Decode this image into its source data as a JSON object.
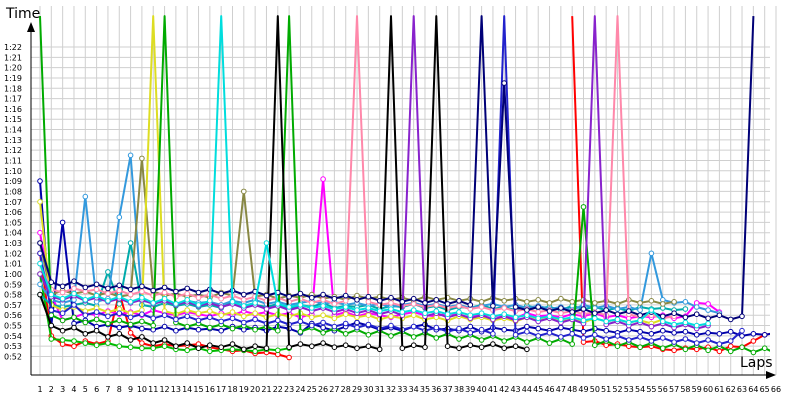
{
  "chart_data": {
    "type": "line",
    "ylabel": "Time",
    "xlabel": "Laps",
    "grid": true,
    "legend": "none",
    "xlim": [
      1,
      66
    ],
    "ylim": [
      51,
      82.5
    ],
    "y_ticks": [
      "0:52",
      "0:53",
      "0:54",
      "0:55",
      "0:56",
      "0:57",
      "0:58",
      "0:59",
      "1:00",
      "1:01",
      "1:02",
      "1:03",
      "1:04",
      "1:05",
      "1:06",
      "1:07",
      "1:08",
      "1:09",
      "1:10",
      "1:11",
      "1:12",
      "1:13",
      "1:14",
      "1:15",
      "1:16",
      "1:17",
      "1:18",
      "1:19",
      "1:20",
      "1:21",
      "1:22"
    ],
    "x_ticks": [
      "1",
      "2",
      "3",
      "4",
      "5",
      "6",
      "7",
      "8",
      "9",
      "10",
      "11",
      "12",
      "13",
      "14",
      "15",
      "16",
      "17",
      "18",
      "19",
      "20",
      "21",
      "22",
      "23",
      "24",
      "25",
      "26",
      "27",
      "28",
      "29",
      "30",
      "31",
      "32",
      "33",
      "34",
      "35",
      "36",
      "37",
      "38",
      "39",
      "40",
      "41",
      "42",
      "43",
      "44",
      "45",
      "46",
      "47",
      "48",
      "49",
      "50",
      "51",
      "52",
      "53",
      "54",
      "55",
      "56",
      "57",
      "58",
      "59",
      "60",
      "61",
      "62",
      "63",
      "64",
      "65",
      "66"
    ],
    "series": [
      {
        "color": "#ff0000",
        "values": [
          62,
          54,
          53.2,
          53.0,
          53.5,
          53.2,
          53.5,
          58.2,
          54.3,
          53.3,
          53.0,
          53.2,
          53.0,
          53.1,
          53.2,
          52.9,
          52.7,
          52.5,
          52.6,
          52.3,
          52.4,
          52.2,
          51.9,
          null,
          null,
          null,
          null,
          null,
          null,
          null,
          null,
          null,
          null,
          null,
          null,
          null,
          null,
          null,
          null,
          null,
          null,
          null,
          null,
          null,
          null,
          null,
          null,
          85,
          53.4,
          53.5,
          53.1,
          53.2,
          53.0,
          52.9,
          53.0,
          52.7,
          52.6,
          52.8,
          52.7,
          52.9,
          52.5,
          53.0,
          52.9,
          53.5,
          54.1,
          54.3
        ]
      },
      {
        "color": "#00bb00",
        "values": [
          60.0,
          53.7,
          53.6,
          53.5,
          53.3,
          53.1,
          53.3,
          53.0,
          52.9,
          52.8,
          52.8,
          53.0,
          52.7,
          52.6,
          52.8,
          52.5,
          52.6,
          52.7,
          52.6,
          52.5,
          52.7,
          52.6,
          52.8,
          null,
          null,
          null,
          null,
          null,
          null,
          null,
          null,
          null,
          null,
          null,
          null,
          null,
          null,
          null,
          null,
          null,
          null,
          null,
          null,
          null,
          null,
          null,
          null,
          null,
          null,
          null,
          null,
          null,
          null,
          null,
          null,
          null,
          null,
          null,
          null,
          null,
          null,
          null,
          null,
          null,
          null,
          null
        ]
      },
      {
        "color": "#0000aa",
        "values": [
          69,
          55,
          65.0,
          55.2,
          55.5,
          54.9,
          55.1,
          54.8,
          55.0,
          54.7,
          54.6,
          54.9,
          54.5,
          54.8,
          54.6,
          54.7,
          54.5,
          54.9,
          54.6,
          54.8,
          54.5,
          54.9,
          54.7,
          54.3,
          55.2,
          54.8,
          54.5,
          54.9,
          55.3,
          55.0,
          54.6,
          54.8,
          54.5,
          54.9,
          55.1,
          54.6,
          54.7,
          54.5,
          54.9,
          54.4,
          54.8,
          54.6,
          54.5,
          54.9,
          54.7,
          54.5,
          54.8,
          54.6,
          54.4,
          54.7,
          54.5,
          54.3,
          54.6,
          54.4,
          54.2,
          54.5,
          54.3,
          54.4,
          54.1,
          54.3,
          54.2,
          54.4,
          54.0,
          54.2,
          54.1,
          54.3
        ]
      },
      {
        "color": "#ff00ff",
        "values": [
          64,
          58,
          55.5,
          55.8,
          56.2,
          56.0,
          56.4,
          56.1,
          56.3,
          56.0,
          56.5,
          56.2,
          56.0,
          56.3,
          56.1,
          55.9,
          56.2,
          56.0,
          56.4,
          56.1,
          56.3,
          56.0,
          56.2,
          55.8,
          56.1,
          69.2,
          56.0,
          56.3,
          55.9,
          56.2,
          56.0,
          55.8,
          56.1,
          56.3,
          56.0,
          55.9,
          56.2,
          56.0,
          55.8,
          56.1,
          55.9,
          56.0,
          55.7,
          56.2,
          55.9,
          56.0,
          55.8,
          56.1,
          55.9,
          56.2,
          55.8,
          56.0,
          55.7,
          55.9,
          55.8,
          56.0,
          55.7,
          55.9,
          57.2,
          57.1,
          56.3,
          null,
          null,
          null,
          null,
          null
        ]
      },
      {
        "color": "#00aaaa",
        "values": [
          58,
          57,
          56.8,
          57.0,
          57.2,
          56.9,
          60.2,
          57.1,
          63.0,
          57.0,
          56.8,
          57.2,
          56.9,
          57.1,
          56.8,
          57.0,
          56.7,
          57.3,
          56.9,
          57.0,
          56.8,
          57.1,
          56.6,
          57.0,
          56.8,
          57.2,
          56.7,
          56.9,
          56.8,
          57.0,
          56.6,
          56.9,
          56.8,
          57.1,
          56.7,
          56.9,
          56.5,
          56.8,
          56.7,
          57.0,
          56.6,
          56.8,
          56.5,
          56.9,
          56.7,
          56.8,
          56.5,
          56.9,
          56.6,
          56.8,
          56.5,
          56.7,
          56.4,
          56.8,
          56.6,
          56.7,
          56.5,
          56.6,
          null,
          null,
          null,
          null,
          null,
          null,
          null,
          null
        ]
      },
      {
        "color": "#3399dd",
        "values": [
          59,
          57.5,
          57.2,
          57.5,
          67.5,
          57.3,
          57.6,
          65.5,
          71.5,
          57.4,
          57.2,
          57.5,
          57.1,
          57.4,
          57.2,
          57.3,
          57.0,
          57.4,
          57.2,
          57.5,
          57.1,
          57.3,
          57.0,
          57.2,
          57.4,
          57.1,
          57.3,
          57.0,
          57.2,
          56.9,
          57.1,
          56.8,
          57.0,
          57.2,
          56.9,
          57.1,
          56.8,
          57.0,
          56.7,
          56.9,
          57.1,
          56.8,
          57.0,
          56.7,
          56.9,
          56.6,
          56.8,
          56.5,
          57.0,
          56.7,
          56.9,
          56.6,
          56.8,
          56.5,
          62.0,
          57.5,
          57.2,
          57.3,
          56.8,
          56.5,
          56.2,
          null,
          null,
          null,
          null,
          null
        ]
      },
      {
        "color": "#888844",
        "values": [
          63,
          58,
          58.4,
          58.1,
          58.3,
          57.9,
          58.2,
          57.8,
          58.0,
          71.2,
          58.3,
          57.9,
          58.1,
          57.8,
          58.0,
          57.7,
          58.2,
          57.9,
          68.0,
          57.8,
          58.0,
          57.6,
          57.9,
          57.7,
          58.0,
          57.6,
          57.8,
          57.5,
          57.9,
          57.6,
          57.8,
          57.5,
          57.7,
          57.4,
          57.8,
          57.5,
          57.7,
          57.4,
          57.6,
          57.3,
          57.7,
          57.4,
          57.6,
          57.3,
          57.5,
          57.2,
          57.6,
          57.3,
          57.5,
          57.2,
          57.4,
          57.1,
          57.5,
          57.2,
          57.4,
          57.1,
          57.3,
          null,
          null,
          null,
          null,
          null,
          null,
          null,
          null,
          null
        ]
      },
      {
        "color": "#dddd22",
        "values": [
          67,
          57,
          56.5,
          56.8,
          56.4,
          56.7,
          56.3,
          56.6,
          56.2,
          56.5,
          85,
          56.4,
          56.1,
          56.5,
          56.2,
          56.4,
          56.0,
          56.3,
          55.9,
          56.2,
          55.8,
          56.1,
          55.9,
          56.2,
          55.8,
          56.0,
          55.7,
          56.1,
          55.8,
          56.0,
          55.6,
          55.9,
          55.7,
          56.0,
          55.6,
          55.8,
          55.5,
          55.9,
          55.6,
          55.8,
          55.5,
          55.7,
          55.4,
          55.8,
          55.5,
          55.7,
          55.4,
          55.6,
          55.3,
          55.7,
          55.4,
          55.6,
          55.3,
          55.5,
          55.2,
          55.6,
          null,
          null,
          null,
          null,
          null,
          null,
          null,
          null,
          null,
          null
        ]
      },
      {
        "color": "#ff88aa",
        "values": [
          61,
          58.5,
          58.2,
          58.6,
          58.3,
          58.5,
          58.1,
          58.4,
          58.0,
          58.3,
          57.9,
          58.2,
          57.8,
          58.1,
          57.7,
          58.0,
          57.6,
          57.9,
          57.5,
          57.8,
          57.4,
          57.7,
          57.3,
          57.6,
          57.2,
          57.5,
          57.1,
          57.4,
          85,
          57.3,
          57.0,
          57.2,
          56.9,
          57.1,
          56.8,
          57.0,
          56.7,
          56.9,
          56.6,
          56.8,
          56.5,
          56.7,
          56.4,
          56.6,
          56.3,
          56.5,
          56.2,
          56.4,
          56.1,
          56.3,
          56.0,
          85,
          56.1,
          55.8,
          56.0,
          55.7,
          55.9,
          null,
          null,
          null,
          null,
          null,
          null,
          null,
          null,
          null
        ]
      },
      {
        "color": "#00aa00",
        "values": [
          85,
          56,
          55.5,
          55.8,
          55.3,
          55.6,
          55.2,
          55.5,
          55.1,
          55.4,
          55.0,
          85,
          55.3,
          54.9,
          55.2,
          54.8,
          55.1,
          54.7,
          55.0,
          54.6,
          54.9,
          54.5,
          85,
          54.4,
          54.8,
          54.3,
          54.7,
          54.2,
          54.6,
          54.1,
          54.5,
          54.0,
          54.4,
          53.9,
          54.3,
          53.8,
          54.2,
          53.7,
          54.1,
          53.6,
          54.0,
          53.5,
          53.9,
          53.4,
          53.8,
          53.3,
          53.7,
          53.2,
          66.5,
          53.1,
          53.5,
          53.0,
          53.4,
          52.9,
          53.3,
          52.8,
          53.2,
          52.7,
          53.1,
          52.6,
          53.0,
          52.5,
          52.9,
          52.4,
          52.8,
          52.3
        ]
      },
      {
        "color": "#2222cc",
        "values": [
          62,
          56.5,
          56.2,
          57.0,
          56.0,
          56.3,
          55.9,
          56.2,
          55.8,
          56.1,
          55.7,
          56.0,
          55.6,
          55.9,
          55.5,
          55.8,
          55.4,
          55.7,
          55.3,
          55.6,
          55.2,
          55.5,
          55.1,
          55.4,
          55.0,
          55.3,
          54.9,
          55.2,
          54.8,
          55.1,
          54.7,
          55.0,
          54.6,
          54.9,
          54.5,
          54.8,
          54.4,
          54.7,
          54.3,
          54.6,
          54.2,
          85,
          54.1,
          54.4,
          54.0,
          54.3,
          53.9,
          54.2,
          53.8,
          54.1,
          53.7,
          54.0,
          53.6,
          53.9,
          53.5,
          53.8,
          53.4,
          53.7,
          53.3,
          53.6,
          53.2,
          53.5,
          54.5,
          null,
          null,
          null
        ]
      },
      {
        "color": "#000000",
        "values": [
          58,
          55,
          54.5,
          54.8,
          54.2,
          54.5,
          53.9,
          54.2,
          53.6,
          53.9,
          53.3,
          53.6,
          53.0,
          53.3,
          52.8,
          53.1,
          52.9,
          53.2,
          52.7,
          53.0,
          52.8,
          85,
          52.9,
          53.2,
          53.0,
          53.3,
          52.9,
          53.1,
          52.8,
          53.0,
          52.7,
          85,
          52.8,
          53.1,
          52.9,
          85,
          53.0,
          52.8,
          53.1,
          52.9,
          53.2,
          52.8,
          53.0,
          52.7,
          null,
          null,
          null,
          null,
          null,
          null,
          null,
          null,
          null,
          null,
          null,
          null,
          null,
          null,
          null,
          null,
          null,
          null,
          null,
          null,
          null,
          null
        ]
      },
      {
        "color": "#8822cc",
        "values": [
          60,
          57.8,
          57.5,
          57.9,
          57.4,
          57.7,
          57.3,
          57.6,
          57.2,
          57.5,
          57.1,
          57.4,
          57.0,
          57.3,
          56.9,
          57.2,
          56.8,
          57.1,
          56.7,
          57.0,
          56.6,
          56.9,
          56.5,
          56.8,
          56.4,
          56.7,
          56.3,
          56.6,
          56.2,
          56.5,
          56.1,
          56.4,
          56.0,
          85,
          55.9,
          56.2,
          55.8,
          56.1,
          55.7,
          56.0,
          55.6,
          55.9,
          55.5,
          55.8,
          55.4,
          55.7,
          55.3,
          55.6,
          55.2,
          85,
          55.1,
          55.4,
          55.0,
          55.3,
          54.9,
          55.2,
          54.8,
          55.1,
          54.7,
          55.0,
          null,
          null,
          null,
          null,
          null,
          null
        ]
      },
      {
        "color": "#000077",
        "values": [
          63,
          59.2,
          58.8,
          59.3,
          58.7,
          59.0,
          58.6,
          58.9,
          58.5,
          58.8,
          58.4,
          58.7,
          58.3,
          58.6,
          58.2,
          58.5,
          58.1,
          58.4,
          58.0,
          58.3,
          57.9,
          58.2,
          57.8,
          58.1,
          57.7,
          58.0,
          57.6,
          57.9,
          57.5,
          57.8,
          57.4,
          57.7,
          57.3,
          57.6,
          57.2,
          57.5,
          57.1,
          57.4,
          57.0,
          85,
          56.9,
          78.5,
          56.8,
          56.5,
          56.8,
          56.4,
          56.7,
          56.3,
          56.6,
          56.2,
          56.5,
          56.1,
          56.4,
          56.0,
          56.3,
          55.9,
          56.2,
          55.8,
          56.1,
          55.7,
          56.0,
          55.6,
          55.9,
          85,
          null,
          null
        ]
      },
      {
        "color": "#00dddd",
        "values": [
          61,
          58.0,
          57.6,
          58.1,
          57.5,
          57.9,
          57.4,
          57.8,
          57.3,
          57.7,
          57.2,
          57.6,
          57.1,
          57.5,
          57.0,
          57.4,
          85,
          57.3,
          56.9,
          57.2,
          63.0,
          57.1,
          56.8,
          57.0,
          56.7,
          56.9,
          56.6,
          56.8,
          56.5,
          56.7,
          56.4,
          56.6,
          56.3,
          56.5,
          56.2,
          56.4,
          56.1,
          56.3,
          56.0,
          56.2,
          55.9,
          56.1,
          55.8,
          56.0,
          55.7,
          55.9,
          55.6,
          55.8,
          55.5,
          55.7,
          55.4,
          55.6,
          55.3,
          55.5,
          56.5,
          55.4,
          55.1,
          55.3,
          55.0,
          55.2,
          null,
          null,
          null,
          null,
          null,
          null
        ]
      }
    ]
  }
}
